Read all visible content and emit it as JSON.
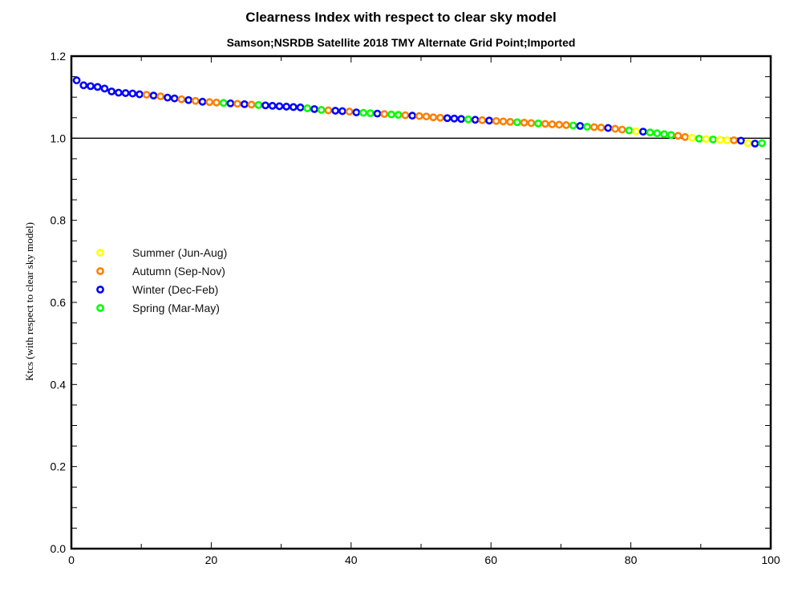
{
  "chart_data": {
    "type": "scatter",
    "title": "Clearness Index with respect to clear sky model",
    "subtitle": "Samson;NSRDB Satellite 2018 TMY Alternate Grid Point;Imported",
    "xlabel": "",
    "ylabel": "Ktcs (with respect to clear sky model)",
    "xlim": [
      0,
      100
    ],
    "ylim": [
      0,
      1.2
    ],
    "x_ticks": [
      "0",
      "20",
      "40",
      "60",
      "80",
      "100"
    ],
    "y_ticks": [
      "0.0",
      "0.2",
      "0.4",
      "0.6",
      "0.8",
      "1.0",
      "1.2"
    ],
    "reference_line_y": 1.0,
    "grid": false,
    "legend_position": "left-middle",
    "series": [
      {
        "key": "S",
        "name": "Summer (Jun-Aug)",
        "color": "#ffff00"
      },
      {
        "key": "A",
        "name": "Autumn (Sep-Nov)",
        "color": "#ff8000"
      },
      {
        "key": "W",
        "name": "Winter (Dec-Feb)",
        "color": "#0000ff"
      },
      {
        "key": "P",
        "name": "Spring (Mar-May)",
        "color": "#00ff00"
      }
    ],
    "points": {
      "y": [
        1.141,
        1.129,
        1.127,
        1.125,
        1.121,
        1.114,
        1.111,
        1.11,
        1.109,
        1.107,
        1.106,
        1.104,
        1.102,
        1.099,
        1.097,
        1.095,
        1.093,
        1.091,
        1.089,
        1.088,
        1.087,
        1.086,
        1.085,
        1.084,
        1.083,
        1.082,
        1.081,
        1.08,
        1.079,
        1.078,
        1.077,
        1.076,
        1.075,
        1.073,
        1.071,
        1.069,
        1.068,
        1.067,
        1.066,
        1.065,
        1.063,
        1.062,
        1.061,
        1.06,
        1.059,
        1.058,
        1.057,
        1.056,
        1.055,
        1.054,
        1.053,
        1.051,
        1.05,
        1.049,
        1.048,
        1.047,
        1.046,
        1.045,
        1.044,
        1.043,
        1.042,
        1.041,
        1.04,
        1.039,
        1.038,
        1.037,
        1.036,
        1.035,
        1.034,
        1.033,
        1.032,
        1.031,
        1.03,
        1.028,
        1.027,
        1.026,
        1.025,
        1.023,
        1.021,
        1.019,
        1.017,
        1.016,
        1.014,
        1.012,
        1.01,
        1.008,
        1.006,
        1.003,
        1.001,
        0.999,
        0.998,
        0.997,
        0.996,
        0.995,
        0.995,
        0.994,
        0.988,
        0.987,
        0.988
      ],
      "season": [
        "W",
        "W",
        "W",
        "W",
        "W",
        "W",
        "W",
        "W",
        "W",
        "W",
        "A",
        "W",
        "A",
        "W",
        "W",
        "A",
        "W",
        "A",
        "W",
        "A",
        "A",
        "P",
        "W",
        "A",
        "W",
        "A",
        "P",
        "W",
        "W",
        "W",
        "W",
        "W",
        "W",
        "P",
        "W",
        "P",
        "A",
        "W",
        "W",
        "A",
        "W",
        "P",
        "P",
        "W",
        "A",
        "P",
        "P",
        "A",
        "W",
        "A",
        "A",
        "A",
        "A",
        "W",
        "W",
        "W",
        "P",
        "W",
        "A",
        "W",
        "A",
        "A",
        "A",
        "P",
        "A",
        "A",
        "P",
        "A",
        "A",
        "A",
        "A",
        "P",
        "W",
        "P",
        "A",
        "A",
        "W",
        "A",
        "A",
        "P",
        "S",
        "W",
        "P",
        "P",
        "P",
        "P",
        "A",
        "A",
        "S",
        "P",
        "S",
        "P",
        "S",
        "S",
        "A",
        "W",
        "S",
        "W",
        "P"
      ]
    }
  }
}
